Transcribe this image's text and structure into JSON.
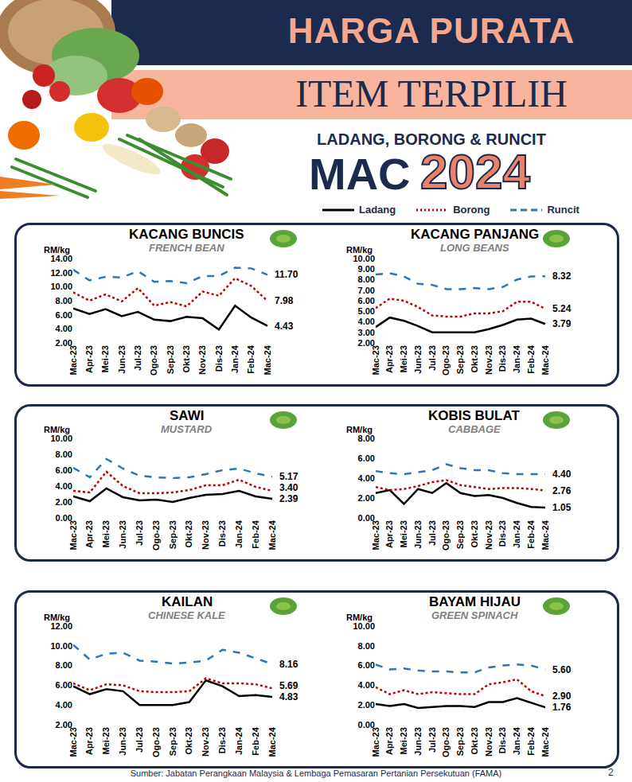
{
  "header": {
    "title": "HARGA PURATA",
    "subtitle": "ITEM TERPILIH",
    "tagline": "LADANG, BORONG & RUNCIT",
    "month": "MAC",
    "year": "2024"
  },
  "footer": {
    "source": "Sumber: Jabatan Perangkaan Malaysia & Lembaga Pemasaran Pertanian Persekutuan (FAMA)",
    "page": "2"
  },
  "chart_data": [
    {
      "type": "line",
      "title": "KACANG BUNCIS",
      "subtitle": "FRENCH BEAN",
      "ylabel": "RM/kg",
      "grid": false,
      "categories": [
        "Mac-23",
        "Apr-23",
        "Mei-23",
        "Jun-23",
        "Jul-23",
        "Ogo-23",
        "Sep-23",
        "Okt-23",
        "Nov-23",
        "Dis-23",
        "Jan-24",
        "Feb-24",
        "Mac-24"
      ],
      "ylim": [
        2,
        14
      ],
      "yticks": [
        {
          "value": 2,
          "label": "2.00"
        },
        {
          "value": 4,
          "label": "4.00"
        },
        {
          "value": 6,
          "label": "6.00"
        },
        {
          "value": 8,
          "label": "8.00"
        },
        {
          "value": 10,
          "label": "10.00"
        },
        {
          "value": 12,
          "label": "12.00"
        },
        {
          "value": 14,
          "label": "14.00"
        }
      ],
      "series": [
        {
          "name": "Ladang",
          "color": "#000000",
          "line_style": "solid",
          "values": [
            6.9,
            6.1,
            6.8,
            5.8,
            6.4,
            5.3,
            5.1,
            5.7,
            5.5,
            3.9,
            7.3,
            5.6,
            4.43
          ],
          "value_labels": [
            null,
            null,
            null,
            null,
            null,
            null,
            null,
            null,
            null,
            null,
            null,
            null,
            "4.43"
          ]
        },
        {
          "name": "Borong",
          "color": "#c00000",
          "line_style": "dotted",
          "values": [
            9.2,
            8.0,
            8.9,
            7.9,
            9.8,
            7.3,
            7.8,
            7.2,
            9.3,
            8.7,
            11.2,
            10.1,
            7.98
          ],
          "value_labels": [
            null,
            null,
            null,
            null,
            null,
            null,
            null,
            null,
            null,
            null,
            null,
            null,
            "7.98"
          ]
        },
        {
          "name": "Runcit",
          "color": "#2e75b6",
          "line_style": "dashed",
          "values": [
            12.4,
            10.9,
            11.4,
            11.3,
            12.2,
            10.7,
            10.8,
            10.5,
            11.5,
            11.5,
            12.7,
            12.6,
            11.7
          ],
          "value_labels": [
            null,
            null,
            null,
            null,
            null,
            null,
            null,
            null,
            null,
            null,
            null,
            null,
            "11.70"
          ]
        }
      ]
    },
    {
      "type": "line",
      "title": "KACANG PANJANG",
      "subtitle": "LONG BEANS",
      "ylabel": "RM/kg",
      "grid": false,
      "categories": [
        "Mac-23",
        "Apr-23",
        "Mei-23",
        "Jun-23",
        "Jul-23",
        "Ogo-23",
        "Sep-23",
        "Okt-23",
        "Nov-23",
        "Dis-23",
        "Jan-24",
        "Feb-24",
        "Mac-24"
      ],
      "ylim": [
        2,
        10
      ],
      "yticks": [
        {
          "value": 2,
          "label": "2.00"
        },
        {
          "value": 3,
          "label": "3.00"
        },
        {
          "value": 4,
          "label": "4.00"
        },
        {
          "value": 5,
          "label": "5.00"
        },
        {
          "value": 6,
          "label": "6.00"
        },
        {
          "value": 7,
          "label": "7.00"
        },
        {
          "value": 8,
          "label": "8.00"
        },
        {
          "value": 9,
          "label": "9.00"
        },
        {
          "value": 10,
          "label": "10.00"
        }
      ],
      "series": [
        {
          "name": "Ladang",
          "color": "#000000",
          "line_style": "solid",
          "values": [
            3.5,
            4.4,
            4.1,
            3.6,
            3.0,
            3.0,
            3.0,
            3.0,
            3.3,
            3.7,
            4.2,
            4.3,
            3.79
          ],
          "value_labels": [
            null,
            null,
            null,
            null,
            null,
            null,
            null,
            null,
            null,
            null,
            null,
            null,
            "3.79"
          ]
        },
        {
          "name": "Borong",
          "color": "#c00000",
          "line_style": "dotted",
          "values": [
            5.3,
            6.2,
            6.0,
            5.4,
            4.6,
            4.5,
            4.5,
            4.8,
            4.8,
            5.0,
            5.9,
            5.9,
            5.24
          ],
          "value_labels": [
            null,
            null,
            null,
            null,
            null,
            null,
            null,
            null,
            null,
            null,
            null,
            null,
            "5.24"
          ]
        },
        {
          "name": "Runcit",
          "color": "#2e75b6",
          "line_style": "dashed",
          "values": [
            8.5,
            8.6,
            8.3,
            7.6,
            7.5,
            7.1,
            7.1,
            7.2,
            7.1,
            7.3,
            8.0,
            8.3,
            8.32
          ],
          "value_labels": [
            null,
            null,
            null,
            null,
            null,
            null,
            null,
            null,
            null,
            null,
            null,
            null,
            "8.32"
          ]
        }
      ]
    },
    {
      "type": "line",
      "title": "SAWI",
      "subtitle": "MUSTARD",
      "ylabel": "RM/kg",
      "grid": false,
      "categories": [
        "Mac-23",
        "Apr-23",
        "Mei-23",
        "Jun-23",
        "Jul-23",
        "Ogo-23",
        "Sep-23",
        "Okt-23",
        "Nov-23",
        "Dis-23",
        "Jan-24",
        "Feb-24",
        "Mac-24"
      ],
      "ylim": [
        0,
        10
      ],
      "yticks": [
        {
          "value": 0,
          "label": "0.00"
        },
        {
          "value": 2,
          "label": "2.00"
        },
        {
          "value": 4,
          "label": "4.00"
        },
        {
          "value": 6,
          "label": "6.00"
        },
        {
          "value": 8,
          "label": "8.00"
        },
        {
          "value": 10,
          "label": "10.00"
        }
      ],
      "series": [
        {
          "name": "Ladang",
          "color": "#000000",
          "line_style": "solid",
          "values": [
            2.7,
            2.1,
            3.7,
            2.6,
            2.2,
            2.3,
            2.0,
            2.5,
            2.9,
            3.0,
            3.4,
            2.7,
            2.39
          ],
          "value_labels": [
            null,
            null,
            null,
            null,
            null,
            null,
            null,
            null,
            null,
            null,
            null,
            null,
            "2.39"
          ]
        },
        {
          "name": "Borong",
          "color": "#c00000",
          "line_style": "dotted",
          "values": [
            3.4,
            3.2,
            5.8,
            4.0,
            3.1,
            3.1,
            3.2,
            3.5,
            4.1,
            4.1,
            4.8,
            3.9,
            3.4
          ],
          "value_labels": [
            null,
            null,
            null,
            null,
            null,
            null,
            null,
            null,
            null,
            null,
            null,
            null,
            "3.40"
          ]
        },
        {
          "name": "Runcit",
          "color": "#2e75b6",
          "line_style": "dashed",
          "values": [
            6.3,
            5.1,
            7.4,
            6.2,
            5.3,
            5.1,
            5.0,
            5.1,
            5.5,
            6.0,
            6.2,
            5.6,
            5.17
          ],
          "value_labels": [
            null,
            null,
            null,
            null,
            null,
            null,
            null,
            null,
            null,
            null,
            null,
            null,
            "5.17"
          ]
        }
      ]
    },
    {
      "type": "line",
      "title": "KOBIS BULAT",
      "subtitle": "CABBAGE",
      "ylabel": "RM/kg",
      "grid": false,
      "categories": [
        "Mac-23",
        "Apr-23",
        "Mei-23",
        "Jun-23",
        "Jul-23",
        "Ogo-23",
        "Sep-23",
        "Okt-23",
        "Nov-23",
        "Dis-23",
        "Jan-24",
        "Feb-24",
        "Mac-24"
      ],
      "ylim": [
        0,
        8
      ],
      "yticks": [
        {
          "value": 0,
          "label": "0.00"
        },
        {
          "value": 2,
          "label": "2.00"
        },
        {
          "value": 4,
          "label": "4.00"
        },
        {
          "value": 6,
          "label": "6.00"
        },
        {
          "value": 8,
          "label": "8.00"
        }
      ],
      "series": [
        {
          "name": "Ladang",
          "color": "#000000",
          "line_style": "solid",
          "values": [
            2.5,
            2.8,
            1.4,
            2.9,
            2.5,
            3.5,
            2.5,
            2.2,
            2.3,
            2.0,
            1.5,
            1.1,
            1.05
          ],
          "value_labels": [
            null,
            null,
            null,
            null,
            null,
            null,
            null,
            null,
            null,
            null,
            null,
            null,
            "1.05"
          ]
        },
        {
          "name": "Borong",
          "color": "#c00000",
          "line_style": "dotted",
          "values": [
            3.1,
            2.8,
            2.9,
            3.2,
            3.6,
            3.8,
            3.3,
            3.1,
            2.9,
            3.0,
            3.0,
            2.9,
            2.76
          ],
          "value_labels": [
            null,
            null,
            null,
            null,
            null,
            null,
            null,
            null,
            null,
            null,
            null,
            null,
            "2.76"
          ]
        },
        {
          "name": "Runcit",
          "color": "#2e75b6",
          "line_style": "dashed",
          "values": [
            4.7,
            4.5,
            4.4,
            4.6,
            4.8,
            5.4,
            5.0,
            4.8,
            4.8,
            4.5,
            4.4,
            4.4,
            4.4
          ],
          "value_labels": [
            null,
            null,
            null,
            null,
            null,
            null,
            null,
            null,
            null,
            null,
            null,
            null,
            "4.40"
          ]
        }
      ]
    },
    {
      "type": "line",
      "title": "KAILAN",
      "subtitle": "CHINESE KALE",
      "ylabel": "RM/kg",
      "grid": false,
      "categories": [
        "Mac-23",
        "Apr-23",
        "Mei-23",
        "Jun-23",
        "Jul-23",
        "Ogo-23",
        "Sep-23",
        "Okt-23",
        "Nov-23",
        "Dis-23",
        "Jan-24",
        "Feb-24",
        "Mac-24"
      ],
      "ylim": [
        2,
        12
      ],
      "yticks": [
        {
          "value": 2,
          "label": "2.00"
        },
        {
          "value": 4,
          "label": "4.00"
        },
        {
          "value": 6,
          "label": "6.00"
        },
        {
          "value": 8,
          "label": "8.00"
        },
        {
          "value": 10,
          "label": "10.00"
        },
        {
          "value": 12,
          "label": "12.00"
        }
      ],
      "series": [
        {
          "name": "Ladang",
          "color": "#000000",
          "line_style": "solid",
          "values": [
            5.9,
            5.1,
            5.6,
            5.4,
            4.0,
            4.0,
            4.0,
            4.3,
            6.5,
            5.9,
            4.9,
            5.0,
            4.83
          ],
          "value_labels": [
            null,
            null,
            null,
            null,
            null,
            null,
            null,
            null,
            null,
            null,
            null,
            null,
            "4.83"
          ]
        },
        {
          "name": "Borong",
          "color": "#c00000",
          "line_style": "dotted",
          "values": [
            6.2,
            5.5,
            6.1,
            6.0,
            5.4,
            5.3,
            5.3,
            5.4,
            6.7,
            6.2,
            6.2,
            6.1,
            5.69
          ],
          "value_labels": [
            null,
            null,
            null,
            null,
            null,
            null,
            null,
            null,
            null,
            null,
            null,
            null,
            "5.69"
          ]
        },
        {
          "name": "Runcit",
          "color": "#2e75b6",
          "line_style": "dashed",
          "values": [
            10.1,
            8.6,
            9.2,
            9.3,
            8.5,
            8.4,
            8.2,
            8.3,
            8.5,
            9.6,
            9.3,
            8.7,
            8.16
          ],
          "value_labels": [
            null,
            null,
            null,
            null,
            null,
            null,
            null,
            null,
            null,
            null,
            null,
            null,
            "8.16"
          ]
        }
      ]
    },
    {
      "type": "line",
      "title": "BAYAM HIJAU",
      "subtitle": "GREEN SPINACH",
      "ylabel": "RM/kg",
      "grid": false,
      "categories": [
        "Mac-23",
        "Apr-23",
        "Mei-23",
        "Jun-23",
        "Jul-23",
        "Ogo-23",
        "Sep-23",
        "Okt-23",
        "Nov-23",
        "Dis-23",
        "Jan-24",
        "Feb-24",
        "Mac-24"
      ],
      "ylim": [
        0,
        10
      ],
      "yticks": [
        {
          "value": 0,
          "label": "0.00"
        },
        {
          "value": 2,
          "label": "2.00"
        },
        {
          "value": 4,
          "label": "4.00"
        },
        {
          "value": 6,
          "label": "6.00"
        },
        {
          "value": 8,
          "label": "8.00"
        },
        {
          "value": 10,
          "label": "10.00"
        }
      ],
      "series": [
        {
          "name": "Ladang",
          "color": "#000000",
          "line_style": "solid",
          "values": [
            2.1,
            1.9,
            2.1,
            1.7,
            1.8,
            1.9,
            1.9,
            1.8,
            2.3,
            2.3,
            2.7,
            2.2,
            1.76
          ],
          "value_labels": [
            null,
            null,
            null,
            null,
            null,
            null,
            null,
            null,
            null,
            null,
            null,
            null,
            "1.76"
          ]
        },
        {
          "name": "Borong",
          "color": "#c00000",
          "line_style": "dotted",
          "values": [
            3.8,
            3.1,
            3.5,
            3.1,
            3.3,
            3.2,
            3.1,
            3.1,
            4.1,
            4.3,
            4.6,
            3.4,
            2.9
          ],
          "value_labels": [
            null,
            null,
            null,
            null,
            null,
            null,
            null,
            null,
            null,
            null,
            null,
            null,
            "2.90"
          ]
        },
        {
          "name": "Runcit",
          "color": "#2e75b6",
          "line_style": "dashed",
          "values": [
            6.1,
            5.6,
            5.7,
            5.5,
            5.4,
            5.4,
            5.3,
            5.3,
            5.8,
            6.0,
            6.1,
            6.0,
            5.6
          ],
          "value_labels": [
            null,
            null,
            null,
            null,
            null,
            null,
            null,
            null,
            null,
            null,
            null,
            null,
            "5.60"
          ]
        }
      ]
    }
  ]
}
